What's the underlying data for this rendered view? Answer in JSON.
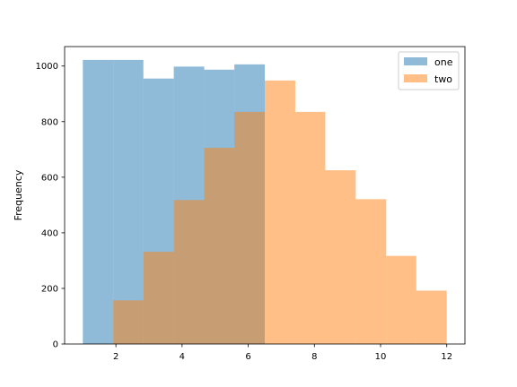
{
  "chart_data": {
    "type": "bar",
    "subtype": "overlaid-histogram",
    "title": "",
    "xlabel": "",
    "ylabel": "Frequency",
    "xlim": [
      0.45,
      12.55
    ],
    "ylim": [
      0,
      1070
    ],
    "xticks": [
      2,
      4,
      6,
      8,
      10,
      12
    ],
    "yticks": [
      0,
      200,
      400,
      600,
      800,
      1000
    ],
    "grid": false,
    "legend_position": "top-right",
    "series": [
      {
        "name": "one",
        "color": "#1f77b4",
        "alpha": 0.5,
        "bins": [
          {
            "x0": 1.0,
            "x1": 1.92,
            "value": 1022
          },
          {
            "x0": 1.92,
            "x1": 2.83,
            "value": 1022
          },
          {
            "x0": 2.83,
            "x1": 3.75,
            "value": 955
          },
          {
            "x0": 3.75,
            "x1": 4.67,
            "value": 998
          },
          {
            "x0": 4.67,
            "x1": 5.58,
            "value": 987
          },
          {
            "x0": 5.58,
            "x1": 6.5,
            "value": 1006
          }
        ]
      },
      {
        "name": "two",
        "color": "#ff7f0e",
        "alpha": 0.5,
        "bins": [
          {
            "x0": 1.92,
            "x1": 2.83,
            "value": 157
          },
          {
            "x0": 2.83,
            "x1": 3.75,
            "value": 332
          },
          {
            "x0": 3.75,
            "x1": 4.67,
            "value": 518
          },
          {
            "x0": 4.67,
            "x1": 5.58,
            "value": 706
          },
          {
            "x0": 5.58,
            "x1": 6.5,
            "value": 835
          },
          {
            "x0": 6.5,
            "x1": 7.42,
            "value": 948
          },
          {
            "x0": 7.42,
            "x1": 8.33,
            "value": 835
          },
          {
            "x0": 8.33,
            "x1": 9.25,
            "value": 625
          },
          {
            "x0": 9.25,
            "x1": 10.17,
            "value": 521
          },
          {
            "x0": 10.17,
            "x1": 11.08,
            "value": 317
          },
          {
            "x0": 11.08,
            "x1": 12.0,
            "value": 192
          }
        ]
      }
    ]
  }
}
